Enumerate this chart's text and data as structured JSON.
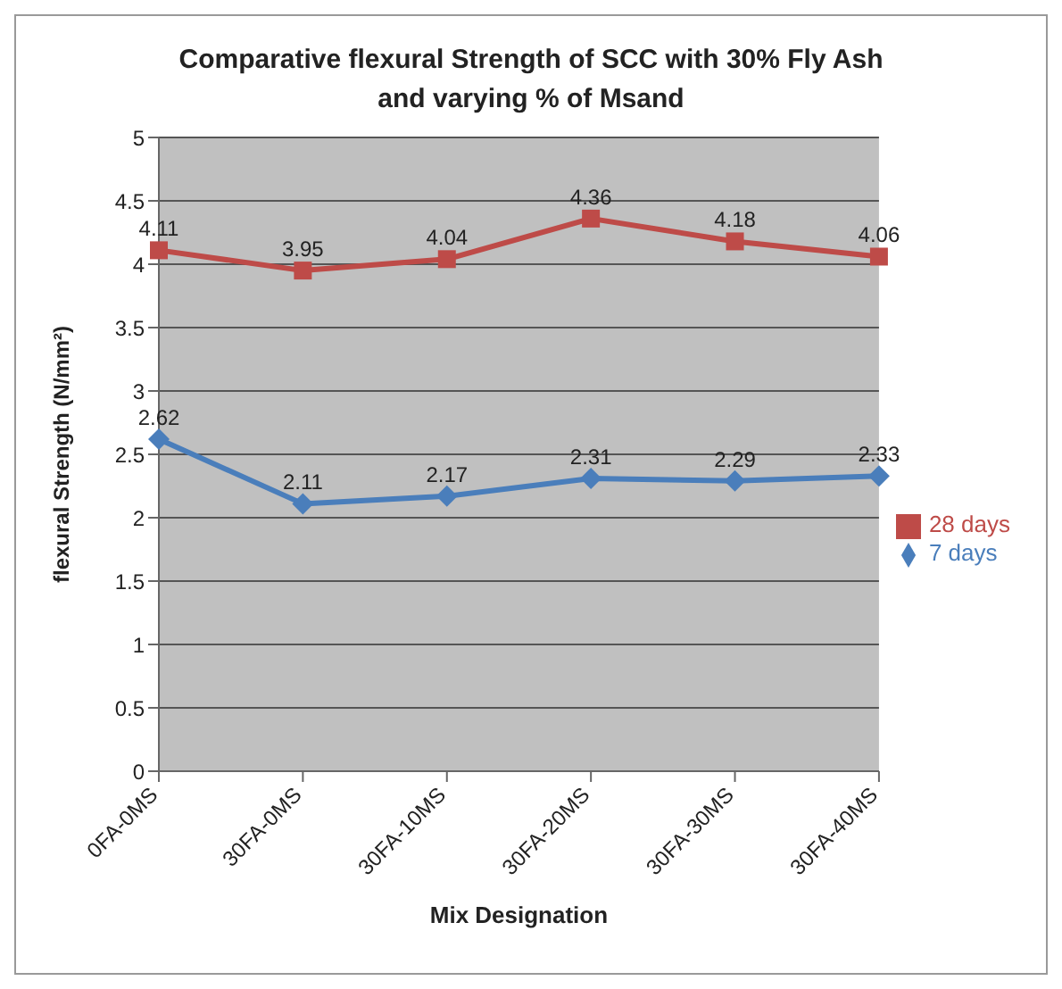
{
  "chart_data": {
    "type": "line",
    "title": "Comparative flexural Strength of SCC with 30% Fly Ash and varying % of Msand",
    "xlabel": "Mix Designation",
    "ylabel": "flexural Strength (N/mm²)",
    "categories": [
      "0FA-0MS",
      "30FA-0MS",
      "30FA-10MS",
      "30FA-20MS",
      "30FA-30MS",
      "30FA-40MS"
    ],
    "series": [
      {
        "name": "7 days",
        "color": "#4a7ebb",
        "marker": "diamond",
        "values": [
          2.62,
          2.11,
          2.17,
          2.31,
          2.29,
          2.33
        ]
      },
      {
        "name": "28 days",
        "color": "#be4b48",
        "marker": "square",
        "values": [
          4.11,
          3.95,
          4.04,
          4.36,
          4.18,
          4.06
        ]
      }
    ],
    "ylim": [
      0,
      5
    ],
    "yticks": [
      0,
      0.5,
      1,
      1.5,
      2,
      2.5,
      3,
      3.5,
      4,
      4.5,
      5
    ],
    "grid": "y",
    "legend": "right",
    "data_labels": true
  }
}
